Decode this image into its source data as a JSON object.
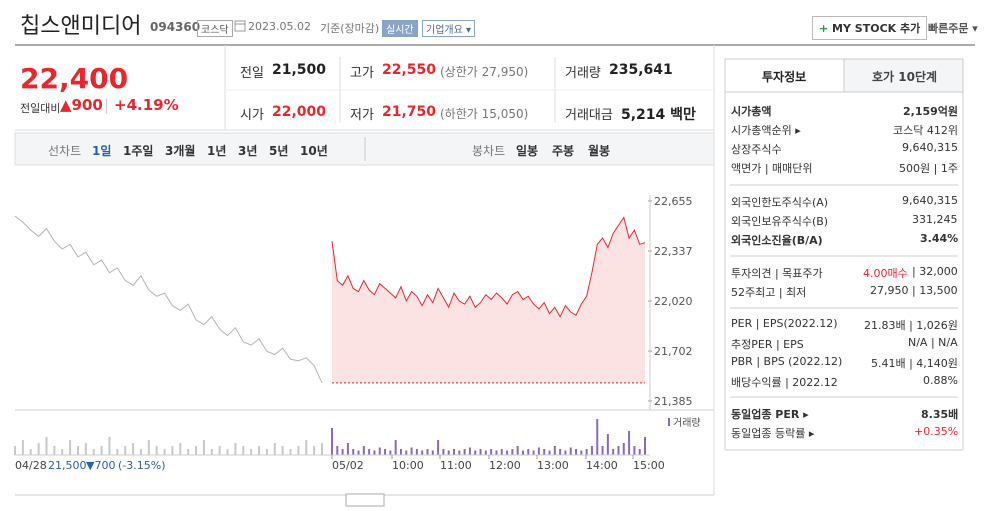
{
  "header": {
    "name": "칩스앤미디어",
    "code": "094360",
    "market": "코스닥",
    "date": "2023.05.02",
    "basis": "기준(장마감)",
    "realtime": "실시간",
    "company_info": "기업개요 ▾",
    "my_stock": "MY STOCK 추가",
    "quick_order": "빠른주문 ▾"
  },
  "price": {
    "current": "22,400",
    "change_label": "전일대비",
    "change": "▲900",
    "change_pct": "+4.19%"
  },
  "stats": [
    {
      "label": "전일",
      "value": "21,500"
    },
    {
      "label": "고가",
      "value": "22,550",
      "note": "(상한가 27,950)"
    },
    {
      "label": "거래량",
      "value": "235,641"
    },
    {
      "label": "시가",
      "value": "22,000"
    },
    {
      "label": "저가",
      "value": "21,750",
      "note": "(하한가 15,050)"
    },
    {
      "label": "거래대금",
      "value": "5,214 백만"
    }
  ],
  "tabs": {
    "line_label": "선차트",
    "line_periods": [
      "1일",
      "1주일",
      "3개월",
      "1년",
      "3년",
      "5년",
      "10년"
    ],
    "candle_label": "봉차트",
    "candle_periods": [
      "일봉",
      "주봉",
      "월봉"
    ]
  },
  "chart": {
    "ylim": [
      21385,
      22655
    ],
    "yticks": [
      {
        "value": 21385,
        "label": "21,385"
      },
      {
        "value": 21702,
        "label": "21,702"
      },
      {
        "value": 22020,
        "label": "22,020"
      },
      {
        "value": 22337,
        "label": "22,337"
      },
      {
        "value": 22655,
        "label": "22,655"
      }
    ],
    "base_line": 21500,
    "series": [
      {
        "color": "#b4b4b4",
        "values": [
          22560,
          22520,
          22470,
          22430,
          22480,
          22400,
          22350,
          22380,
          22300,
          22330,
          22250,
          22280,
          22200,
          22230,
          22150,
          22120,
          22180,
          22090,
          22050,
          22070,
          21990,
          21960,
          22000,
          21900,
          21870,
          21920,
          21840,
          21800,
          21850,
          21760,
          21740,
          21780,
          21700,
          21680,
          21720,
          21650,
          21640,
          21660,
          21610,
          21500
        ],
        "volumes": [
          3000,
          5000,
          2000,
          4000,
          6000,
          3000,
          2000,
          5000,
          3000,
          4000,
          2000,
          3000,
          6000,
          2000,
          3000,
          4000,
          2000,
          5000,
          3000,
          2000,
          3000,
          4000,
          2000,
          3000,
          5000,
          2000,
          3000,
          2000,
          4000,
          3000,
          2000,
          3000,
          2000,
          4000,
          3000,
          2000,
          3000,
          5000,
          3000,
          4000
        ]
      },
      {
        "color": "#e8262b",
        "values": [
          22400,
          22150,
          22120,
          22180,
          22100,
          22080,
          22150,
          22090,
          22060,
          22130,
          22100,
          22070,
          22040,
          22110,
          22020,
          22080,
          22050,
          21990,
          22060,
          22010,
          22100,
          22040,
          21980,
          22070,
          22020,
          22000,
          22050,
          21980,
          22010,
          22060,
          22030,
          22070,
          22040,
          22000,
          22060,
          22080,
          22030,
          22050,
          22000,
          21970,
          22010,
          21940,
          21980,
          21920,
          21990,
          21950,
          21930,
          22000,
          22050,
          22200,
          22380,
          22420,
          22360,
          22450,
          22500,
          22550,
          22420,
          22470,
          22380,
          22390
        ],
        "volumes": [
          9000,
          3000,
          2000,
          4000,
          2000,
          1500,
          3000,
          2000,
          1500,
          2500,
          2000,
          1500,
          5000,
          2000,
          1500,
          2500,
          2000,
          1500,
          2000,
          1500,
          5000,
          2000,
          1500,
          2000,
          1500,
          2000,
          2500,
          1500,
          2000,
          1500,
          2000,
          1500,
          2000,
          1500,
          2000,
          3000,
          1500,
          2000,
          1500,
          2500,
          2000,
          1500,
          3000,
          2000,
          1500,
          2500,
          2000,
          1500,
          2000,
          3000,
          12000,
          3000,
          7000,
          2000,
          3000,
          4000,
          8000,
          3000,
          2000,
          6000
        ]
      }
    ],
    "volume_label": "거래량",
    "prev_date": "04/28",
    "prev_close": "21,500",
    "prev_change": "▼700",
    "prev_change_pct": "(-3.15%)",
    "times": [
      "05/02",
      "10:00",
      "11:00",
      "12:00",
      "13:00",
      "14:00",
      "15:00"
    ]
  },
  "sidebar": {
    "tabs": [
      "투자정보",
      "호가 10단계"
    ],
    "groups": [
      [
        {
          "label": "시가총액",
          "value": "2,159억원"
        },
        {
          "label": "시가총액순위 ▸",
          "value": "코스닥 412위"
        },
        {
          "label": "상장주식수",
          "value": "9,640,315"
        },
        {
          "label": "액면가 | 매매단위",
          "value": "500원 | 1주"
        }
      ],
      [
        {
          "label": "외국인한도주식수(A)",
          "value": "9,640,315"
        },
        {
          "label": "외국인보유주식수(B)",
          "value": "331,245"
        },
        {
          "label": "외국인소진율(B/A)",
          "value": "3.44%"
        }
      ],
      [
        {
          "label": "투자의견 | 목표주가",
          "value": [
            "4.00매수",
            "| 32,000"
          ]
        },
        {
          "label": "52주최고 | 최저",
          "value": "27,950 | 13,500"
        }
      ],
      [
        {
          "label": "PER | EPS(2022.12)",
          "value": "21.83배 | 1,026원"
        },
        {
          "label": "추정PER | EPS",
          "value": "N/A | N/A"
        },
        {
          "label": "PBR | BPS (2022.12)",
          "value": "5.41배 | 4,140원"
        },
        {
          "label": "배당수익률 | 2022.12",
          "value": "0.88%"
        }
      ],
      [
        {
          "label": "동일업종 PER ▸",
          "value": "8.35배"
        },
        {
          "label": "동일업종 등락률 ▸",
          "value": "+0.35%"
        }
      ]
    ]
  }
}
